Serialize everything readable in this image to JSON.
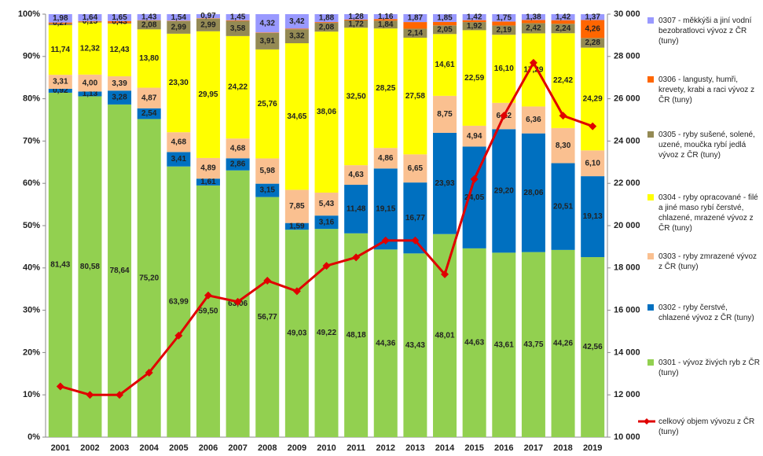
{
  "chart_data": {
    "type": "bar",
    "stacked": true,
    "categories": [
      "2001",
      "2002",
      "2003",
      "2004",
      "2005",
      "2006",
      "2007",
      "2008",
      "2009",
      "2010",
      "2011",
      "2012",
      "2013",
      "2014",
      "2015",
      "2016",
      "2017",
      "2018",
      "2019"
    ],
    "ylim": [
      0,
      100
    ],
    "yticks": [
      {
        "value": 0,
        "label": "0%"
      },
      {
        "value": 10,
        "label": "10%"
      },
      {
        "value": 20,
        "label": "20%"
      },
      {
        "value": 30,
        "label": "30%"
      },
      {
        "value": 40,
        "label": "40%"
      },
      {
        "value": 50,
        "label": "50%"
      },
      {
        "value": 60,
        "label": "60%"
      },
      {
        "value": 70,
        "label": "70%"
      },
      {
        "value": 80,
        "label": "80%"
      },
      {
        "value": 90,
        "label": "90%"
      },
      {
        "value": 100,
        "label": "100%"
      }
    ],
    "y2lim": [
      10000,
      30000
    ],
    "y2ticks": [
      {
        "value": 10000,
        "label": "10 000"
      },
      {
        "value": 12000,
        "label": "12 000"
      },
      {
        "value": 14000,
        "label": "14 000"
      },
      {
        "value": 16000,
        "label": "16 000"
      },
      {
        "value": 18000,
        "label": "18 000"
      },
      {
        "value": 20000,
        "label": "20 000"
      },
      {
        "value": 22000,
        "label": "22 000"
      },
      {
        "value": 24000,
        "label": "24 000"
      },
      {
        "value": 26000,
        "label": "26 000"
      },
      {
        "value": 28000,
        "label": "28 000"
      },
      {
        "value": 30000,
        "label": "30 000"
      }
    ],
    "series": [
      {
        "name": "0301 - vývoz živých ryb z ČR (tuny)",
        "color": "#92d050",
        "values": [
          81.43,
          80.58,
          78.64,
          75.2,
          63.99,
          59.5,
          63.06,
          56.77,
          49.03,
          49.22,
          48.18,
          44.36,
          43.43,
          48.01,
          44.63,
          43.61,
          43.75,
          44.26,
          42.56
        ],
        "value_labels": [
          "81,43",
          "80,58",
          "78,64",
          "75,20",
          "63,99",
          "59,50",
          "63,06",
          "56,77",
          "49,03",
          "49,22",
          "48,18",
          "44,36",
          "43,43",
          "48,01",
          "44,63",
          "43,61",
          "43,75",
          "44,26",
          "42,56"
        ]
      },
      {
        "name": "0302 - ryby čerstvé, chlazené vývoz z ČR (tuny)",
        "color": "#0070c0",
        "values": [
          0.92,
          1.13,
          3.28,
          2.54,
          3.41,
          1.61,
          2.86,
          3.15,
          1.59,
          3.16,
          11.48,
          19.15,
          16.77,
          23.93,
          24.05,
          29.2,
          28.06,
          20.51,
          19.13
        ],
        "value_labels": [
          "0,92",
          "1,13",
          "3,28",
          "2,54",
          "3,41",
          "1,61",
          "2,86",
          "3,15",
          "1,59",
          "3,16",
          "11,48",
          "19,15",
          "16,77",
          "23,93",
          "24,05",
          "29,20",
          "28,06",
          "20,51",
          "19,13"
        ]
      },
      {
        "name": "0303 - ryby zmrazené vývoz z ČR (tuny)",
        "color": "#fac090",
        "values": [
          3.31,
          4.0,
          3.39,
          4.87,
          4.68,
          4.89,
          4.68,
          5.98,
          7.85,
          5.43,
          4.63,
          4.86,
          6.65,
          8.75,
          4.94,
          6.22,
          6.36,
          8.3,
          6.1
        ],
        "value_labels": [
          "3,31",
          "4,00",
          "3,39",
          "4,87",
          "4,68",
          "4,89",
          "4,68",
          "5,98",
          "7,85",
          "5,43",
          "4,63",
          "4,86",
          "6,65",
          "8,75",
          "4,94",
          "6,22",
          "6,36",
          "8,30",
          "6,10"
        ]
      },
      {
        "name": "0304 - ryby opracované - filé a jiné maso rybí čerstvé, chlazené, mrazené vývoz z ČR (tuny)",
        "color": "#ffff00",
        "values": [
          11.74,
          12.32,
          12.43,
          13.8,
          23.3,
          29.95,
          24.22,
          25.76,
          34.65,
          38.06,
          32.5,
          28.25,
          27.58,
          14.61,
          22.59,
          16.1,
          17.29,
          22.42,
          24.29
        ],
        "value_labels": [
          "11,74",
          "12,32",
          "12,43",
          "13,80",
          "23,30",
          "29,95",
          "24,22",
          "25,76",
          "34,65",
          "38,06",
          "32,50",
          "28,25",
          "27,58",
          "14,61",
          "22,59",
          "16,10",
          "17,29",
          "22,42",
          "24,29"
        ]
      },
      {
        "name": "0305 - ryby sušené, solené, uzené, moučka rybí jedlá  vývoz z ČR (tuny)",
        "color": "#948a54",
        "values": [
          0.35,
          0.18,
          0.18,
          2.08,
          2.99,
          2.99,
          3.58,
          3.91,
          3.32,
          2.08,
          1.72,
          1.84,
          2.14,
          2.05,
          1.92,
          2.19,
          2.42,
          2.24,
          2.28
        ],
        "value_labels": [
          null,
          null,
          null,
          "2,08",
          "2,99",
          "2,99",
          "3,58",
          "3,91",
          "3,32",
          "2,08",
          "1,72",
          "1,84",
          "2,14",
          "2,05",
          "1,92",
          "2,19",
          "2,42",
          "2,24",
          "2,28"
        ]
      },
      {
        "name": "0306 - langusty, humři, krevety, krabi a raci vývoz z ČR (tuny)",
        "color": "#ff6600",
        "values": [
          0.27,
          0.15,
          0.43,
          0.08,
          0.09,
          0.09,
          0.15,
          0.11,
          0.14,
          0.17,
          0.21,
          0.38,
          1.56,
          0.8,
          0.45,
          0.93,
          0.74,
          0.85,
          4.26
        ],
        "value_labels": [
          "0,27",
          "0,15",
          "0,43",
          null,
          null,
          null,
          null,
          null,
          null,
          null,
          null,
          null,
          null,
          null,
          null,
          null,
          null,
          null,
          "4,26"
        ]
      },
      {
        "name": "0307 - měkkýši a jiní vodní bezobratlovci vývoz z ČR (tuny)",
        "color": "#9999ff",
        "values": [
          1.98,
          1.64,
          1.65,
          1.43,
          1.54,
          0.97,
          1.45,
          4.32,
          3.42,
          1.88,
          1.28,
          1.16,
          1.87,
          1.85,
          1.42,
          1.75,
          1.38,
          1.42,
          1.37
        ],
        "value_labels": [
          "1,98",
          "1,64",
          "1,65",
          "1,43",
          "1,54",
          "0,97",
          "1,45",
          "4,32",
          "3,42",
          "1,88",
          "1,28",
          "1,16",
          "1,87",
          "1,85",
          "1,42",
          "1,75",
          "1,38",
          "1,42",
          "1,37"
        ]
      },
      {
        "name": "celkový objem vývozu z ČR (tuny)",
        "type": "line",
        "axis": "y2",
        "color": "#e00000",
        "values": [
          12400,
          12000,
          12000,
          13050,
          14800,
          16700,
          16400,
          17400,
          16900,
          18100,
          18500,
          19300,
          19300,
          17700,
          22200,
          25200,
          27700,
          25200,
          24700
        ]
      }
    ]
  }
}
